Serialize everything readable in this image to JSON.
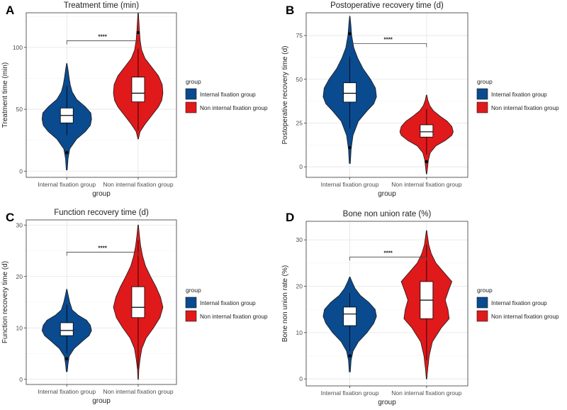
{
  "colors": {
    "internal": "#0a4a8f",
    "non_internal": "#e0191b",
    "grid": "#e6e6e6",
    "frame": "#4d4d4d"
  },
  "chart_data": [
    {
      "panel": "A",
      "type": "violin",
      "title": "Treatment time (min)",
      "xlabel": "group",
      "ylabel": "Treatment time (min)",
      "ylim": [
        -5,
        128
      ],
      "yticks": [
        0,
        50,
        100
      ],
      "categories": [
        "Internal fixation group",
        "Non internal fixation group"
      ],
      "significance": "****",
      "legend": {
        "title": "group",
        "entries": [
          "Internal fixation group",
          "Non internal fixation group"
        ]
      },
      "groups": [
        {
          "name": "Internal fixation group",
          "min": 1,
          "max": 87,
          "q1": 39,
          "median": 45,
          "q3": 51,
          "whisker_low": 29,
          "whisker_high": 69,
          "outliers": [
            15
          ],
          "density": [
            [
              1,
              0.02
            ],
            [
              10,
              0.05
            ],
            [
              18,
              0.12
            ],
            [
              26,
              0.4
            ],
            [
              32,
              0.75
            ],
            [
              37,
              0.95
            ],
            [
              42,
              1.0
            ],
            [
              47,
              0.97
            ],
            [
              52,
              0.75
            ],
            [
              58,
              0.4
            ],
            [
              64,
              0.22
            ],
            [
              70,
              0.14
            ],
            [
              76,
              0.09
            ],
            [
              82,
              0.05
            ],
            [
              87,
              0.01
            ]
          ]
        },
        {
          "name": "Non internal fixation group",
          "min": 26,
          "max": 128,
          "q1": 56,
          "median": 63,
          "q3": 76,
          "whisker_low": 33,
          "whisker_high": 99,
          "outliers": [
            112
          ],
          "density": [
            [
              26,
              0.01
            ],
            [
              32,
              0.08
            ],
            [
              38,
              0.28
            ],
            [
              45,
              0.55
            ],
            [
              52,
              0.82
            ],
            [
              57,
              0.95
            ],
            [
              63,
              1.0
            ],
            [
              70,
              0.97
            ],
            [
              77,
              0.82
            ],
            [
              84,
              0.55
            ],
            [
              91,
              0.28
            ],
            [
              98,
              0.14
            ],
            [
              106,
              0.08
            ],
            [
              114,
              0.05
            ],
            [
              121,
              0.03
            ],
            [
              128,
              0.01
            ]
          ]
        }
      ]
    },
    {
      "panel": "B",
      "type": "violin",
      "title": "Postoperative recovery time (d)",
      "xlabel": "group",
      "ylabel": "Postoperative recovery time (d)",
      "ylim": [
        -6,
        88
      ],
      "yticks": [
        0,
        25,
        50,
        75
      ],
      "categories": [
        "Internal fixation group",
        "Non internal fixation group"
      ],
      "significance": "****",
      "legend": {
        "title": "group",
        "entries": [
          "Internal fixation group",
          "Non internal fixation group"
        ]
      },
      "groups": [
        {
          "name": "Internal fixation group",
          "min": 2,
          "max": 86,
          "q1": 37,
          "median": 42,
          "q3": 48,
          "whisker_low": 22,
          "whisker_high": 63,
          "outliers": [
            11,
            76
          ],
          "density": [
            [
              2,
              0.02
            ],
            [
              10,
              0.05
            ],
            [
              18,
              0.12
            ],
            [
              26,
              0.32
            ],
            [
              32,
              0.65
            ],
            [
              36,
              0.9
            ],
            [
              40,
              1.0
            ],
            [
              45,
              0.96
            ],
            [
              50,
              0.78
            ],
            [
              56,
              0.5
            ],
            [
              62,
              0.3
            ],
            [
              68,
              0.15
            ],
            [
              75,
              0.07
            ],
            [
              81,
              0.04
            ],
            [
              86,
              0.01
            ]
          ]
        },
        {
          "name": "Non internal fixation group",
          "min": -4,
          "max": 41,
          "q1": 17,
          "median": 20,
          "q3": 24,
          "whisker_low": 7,
          "whisker_high": 33,
          "outliers": [
            3
          ],
          "density": [
            [
              -4,
              0.01
            ],
            [
              0,
              0.04
            ],
            [
              4,
              0.07
            ],
            [
              8,
              0.14
            ],
            [
              12,
              0.35
            ],
            [
              15,
              0.7
            ],
            [
              18,
              0.95
            ],
            [
              20,
              1.0
            ],
            [
              23,
              0.95
            ],
            [
              26,
              0.78
            ],
            [
              29,
              0.5
            ],
            [
              32,
              0.26
            ],
            [
              35,
              0.12
            ],
            [
              38,
              0.05
            ],
            [
              41,
              0.01
            ]
          ]
        }
      ]
    },
    {
      "panel": "C",
      "type": "violin",
      "title": "Function recovery time (d)",
      "xlabel": "group",
      "ylabel": "Function recovery time (d)",
      "ylim": [
        -1,
        31
      ],
      "yticks": [
        0,
        10,
        20,
        30
      ],
      "categories": [
        "Internal fixation group",
        "Non internal fixation group"
      ],
      "significance": "****",
      "legend": {
        "title": "group",
        "entries": [
          "Internal fixation group",
          "Non internal fixation group"
        ]
      },
      "groups": [
        {
          "name": "Internal fixation group",
          "min": 1.5,
          "max": 17.5,
          "q1": 8.5,
          "median": 9.5,
          "q3": 11,
          "whisker_low": 5,
          "whisker_high": 14.5,
          "outliers": [
            4
          ],
          "density": [
            [
              1.5,
              0.02
            ],
            [
              3,
              0.05
            ],
            [
              4.5,
              0.1
            ],
            [
              6,
              0.3
            ],
            [
              7.5,
              0.65
            ],
            [
              8.5,
              0.9
            ],
            [
              9.5,
              1.0
            ],
            [
              10.5,
              0.95
            ],
            [
              11.5,
              0.8
            ],
            [
              12.5,
              0.45
            ],
            [
              13.5,
              0.22
            ],
            [
              15,
              0.12
            ],
            [
              16.5,
              0.05
            ],
            [
              17.5,
              0.01
            ]
          ]
        },
        {
          "name": "Non internal fixation group",
          "min": 0,
          "max": 30,
          "q1": 12,
          "median": 14,
          "q3": 18,
          "whisker_low": 2,
          "whisker_high": 27,
          "outliers": [],
          "density": [
            [
              0,
              0.01
            ],
            [
              2,
              0.03
            ],
            [
              4,
              0.08
            ],
            [
              6,
              0.15
            ],
            [
              8,
              0.32
            ],
            [
              10,
              0.62
            ],
            [
              12,
              0.88
            ],
            [
              14,
              1.0
            ],
            [
              16,
              0.9
            ],
            [
              18,
              0.72
            ],
            [
              20,
              0.5
            ],
            [
              22,
              0.3
            ],
            [
              24,
              0.18
            ],
            [
              26,
              0.1
            ],
            [
              28,
              0.05
            ],
            [
              30,
              0.01
            ]
          ]
        }
      ]
    },
    {
      "panel": "D",
      "type": "violin",
      "title": "Bone non union rate (%)",
      "xlabel": "group",
      "ylabel": "Bone non union rate (%)",
      "ylim": [
        -1.5,
        34
      ],
      "yticks": [
        0,
        10,
        20,
        30
      ],
      "categories": [
        "Internal fixation group",
        "Non internal fixation group"
      ],
      "significance": "****",
      "legend": {
        "title": "group",
        "entries": [
          "Internal fixation group",
          "Non internal fixation group"
        ]
      },
      "groups": [
        {
          "name": "Internal fixation group",
          "min": 1.5,
          "max": 22,
          "q1": 11.5,
          "median": 14,
          "q3": 15.5,
          "whisker_low": 6,
          "whisker_high": 18.5,
          "outliers": [
            5
          ],
          "density": [
            [
              1.5,
              0.02
            ],
            [
              4,
              0.05
            ],
            [
              6,
              0.12
            ],
            [
              8,
              0.32
            ],
            [
              10,
              0.65
            ],
            [
              12,
              0.9
            ],
            [
              13.5,
              1.0
            ],
            [
              15,
              0.95
            ],
            [
              16.5,
              0.72
            ],
            [
              18,
              0.4
            ],
            [
              19.5,
              0.2
            ],
            [
              21,
              0.08
            ],
            [
              22,
              0.01
            ]
          ]
        },
        {
          "name": "Non internal fixation group",
          "min": 0,
          "max": 32,
          "q1": 13,
          "median": 17,
          "q3": 21,
          "whisker_low": 4,
          "whisker_high": 29,
          "outliers": [],
          "density": [
            [
              0,
              0.01
            ],
            [
              2,
              0.04
            ],
            [
              5,
              0.1
            ],
            [
              8,
              0.22
            ],
            [
              11,
              0.55
            ],
            [
              13,
              0.85
            ],
            [
              15,
              0.8
            ],
            [
              17,
              0.7
            ],
            [
              19,
              0.82
            ],
            [
              21,
              0.95
            ],
            [
              23,
              0.65
            ],
            [
              25,
              0.35
            ],
            [
              27,
              0.18
            ],
            [
              29,
              0.08
            ],
            [
              31,
              0.03
            ],
            [
              32,
              0.01
            ]
          ]
        }
      ]
    }
  ]
}
